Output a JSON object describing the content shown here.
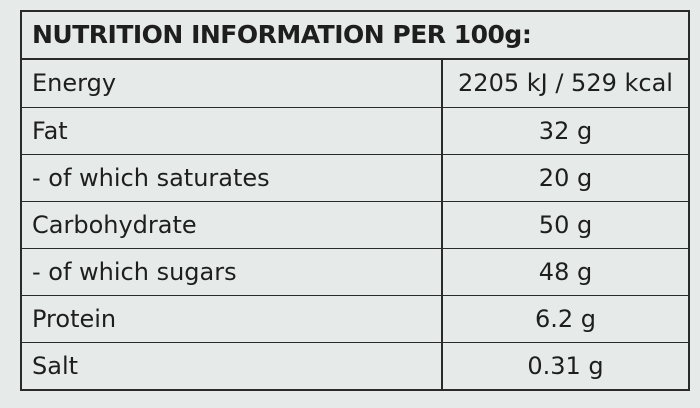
{
  "header": {
    "title": "NUTRITION INFORMATION PER 100g:"
  },
  "table": {
    "rows": [
      [
        "Energy",
        "2205 kJ / 529 kcal"
      ],
      [
        "Fat",
        "32 g"
      ],
      [
        "- of which saturates",
        "20 g"
      ],
      [
        "Carbohydrate",
        "50 g"
      ],
      [
        "- of which sugars",
        "48 g"
      ],
      [
        "Protein",
        "6.2 g"
      ],
      [
        "Salt",
        "0.31 g"
      ]
    ]
  }
}
